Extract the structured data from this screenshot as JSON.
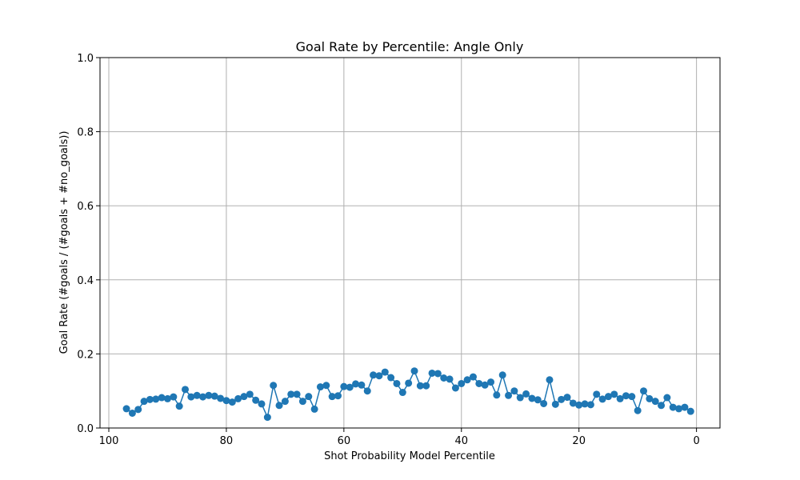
{
  "chart_data": {
    "type": "line",
    "title": "Goal Rate by Percentile: Angle Only",
    "xlabel": "Shot Probability Model Percentile",
    "ylabel": "Goal Rate (#goals / (#goals + #no_goals))",
    "xlim": [
      101.5,
      -4
    ],
    "ylim": [
      0,
      1.0
    ],
    "x_inverted": true,
    "grid": true,
    "marker": "circle",
    "color": "#1f77b4",
    "xticks": [
      100,
      80,
      60,
      40,
      20,
      0
    ],
    "xtick_labels": [
      "100",
      "80",
      "60",
      "40",
      "20",
      "0"
    ],
    "yticks": [
      0.0,
      0.2,
      0.4,
      0.6,
      0.8,
      1.0
    ],
    "ytick_labels": [
      "0.0",
      "0.2",
      "0.4",
      "0.6",
      "0.8",
      "1.0"
    ],
    "series": [
      {
        "x": [
          97,
          96,
          95,
          94,
          93,
          92,
          91,
          90,
          89,
          88,
          87,
          86,
          85,
          84,
          83,
          82,
          81,
          80,
          79,
          78,
          77,
          76,
          75,
          74,
          73,
          72,
          71,
          70,
          69,
          68,
          67,
          66,
          65,
          64,
          63,
          62,
          61,
          60,
          59,
          58,
          57,
          56,
          55,
          54,
          53,
          52,
          51,
          50,
          49,
          48,
          47,
          46,
          45,
          44,
          43,
          42,
          41,
          40,
          39,
          38,
          37,
          36,
          35,
          34,
          33,
          32,
          31,
          30,
          29,
          28,
          27,
          26,
          25,
          24,
          23,
          22,
          21,
          20,
          19,
          18,
          17,
          16,
          15,
          14,
          13,
          12,
          11,
          10,
          9,
          8,
          7,
          6,
          5,
          4,
          3,
          2,
          1
        ],
        "y": [
          0.052,
          0.04,
          0.05,
          0.072,
          0.077,
          0.078,
          0.082,
          0.079,
          0.084,
          0.059,
          0.104,
          0.084,
          0.088,
          0.084,
          0.088,
          0.086,
          0.08,
          0.074,
          0.07,
          0.079,
          0.085,
          0.091,
          0.075,
          0.065,
          0.029,
          0.115,
          0.061,
          0.072,
          0.091,
          0.091,
          0.072,
          0.085,
          0.051,
          0.111,
          0.115,
          0.085,
          0.087,
          0.112,
          0.11,
          0.119,
          0.116,
          0.1,
          0.143,
          0.141,
          0.151,
          0.136,
          0.12,
          0.096,
          0.121,
          0.154,
          0.114,
          0.114,
          0.148,
          0.147,
          0.135,
          0.132,
          0.108,
          0.12,
          0.13,
          0.138,
          0.12,
          0.116,
          0.124,
          0.089,
          0.143,
          0.088,
          0.1,
          0.082,
          0.092,
          0.08,
          0.076,
          0.066,
          0.13,
          0.064,
          0.077,
          0.083,
          0.067,
          0.062,
          0.065,
          0.063,
          0.091,
          0.078,
          0.085,
          0.091,
          0.079,
          0.087,
          0.085,
          0.047,
          0.1,
          0.079,
          0.072,
          0.061,
          0.082,
          0.056,
          0.052,
          0.056,
          0.045
        ]
      }
    ]
  }
}
